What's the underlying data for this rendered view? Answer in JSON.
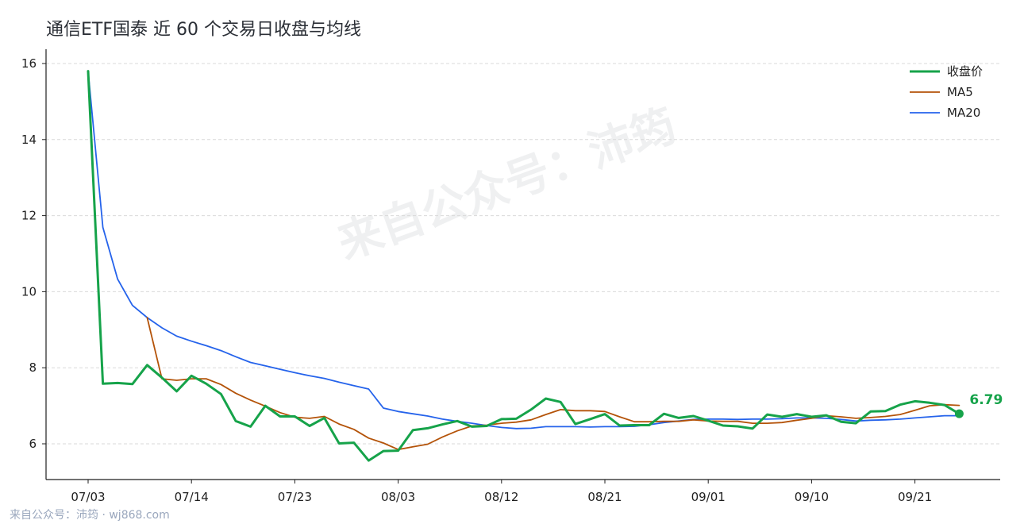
{
  "title": "通信ETF国泰 近 60 个交易日收盘与均线",
  "footer": "来自公众号：沛筠 · wj868.com",
  "watermark": "来自公众号：沛筠",
  "chart_data": {
    "type": "line",
    "title": "通信ETF国泰 近 60 个交易日收盘与均线",
    "xlabel": "",
    "ylabel": "",
    "ylim": [
      5,
      16.6
    ],
    "yticks": [
      6,
      8,
      10,
      12,
      14,
      16
    ],
    "xticks": [
      "07/03",
      "07/14",
      "07/23",
      "08/03",
      "08/12",
      "08/21",
      "09/01",
      "09/10",
      "09/21"
    ],
    "xtick_index": [
      0,
      7,
      14,
      21,
      28,
      35,
      42,
      49,
      56
    ],
    "grid": "horizontal dashed",
    "legend_position": "top-right",
    "last_value_label": "6.79",
    "series": [
      {
        "name": "收盘价",
        "color": "#16a34a",
        "values": [
          15.8,
          7.58,
          7.6,
          7.57,
          8.07,
          7.74,
          7.38,
          7.79,
          7.58,
          7.31,
          6.6,
          6.45,
          7.0,
          6.72,
          6.72,
          6.47,
          6.68,
          6.01,
          6.03,
          5.56,
          5.81,
          5.82,
          6.36,
          6.41,
          6.51,
          6.6,
          6.45,
          6.47,
          6.65,
          6.66,
          6.9,
          7.19,
          7.1,
          6.52,
          6.65,
          6.78,
          6.48,
          6.49,
          6.49,
          6.79,
          6.68,
          6.73,
          6.61,
          6.48,
          6.46,
          6.4,
          6.77,
          6.71,
          6.78,
          6.71,
          6.75,
          6.58,
          6.54,
          6.85,
          6.86,
          7.03,
          7.12,
          7.08,
          7.02,
          6.79
        ]
      },
      {
        "name": "MA5",
        "color": "#b45309",
        "values": [
          null,
          null,
          null,
          null,
          9.32,
          7.71,
          7.67,
          7.71,
          7.71,
          7.56,
          7.33,
          7.15,
          6.99,
          6.82,
          6.7,
          6.67,
          6.72,
          6.52,
          6.38,
          6.15,
          6.02,
          5.85,
          5.92,
          5.99,
          6.18,
          6.34,
          6.47,
          6.49,
          6.54,
          6.57,
          6.63,
          6.77,
          6.9,
          6.87,
          6.87,
          6.85,
          6.71,
          6.58,
          6.58,
          6.59,
          6.59,
          6.63,
          6.6,
          6.59,
          6.59,
          6.54,
          6.54,
          6.56,
          6.62,
          6.67,
          6.74,
          6.71,
          6.67,
          6.69,
          6.72,
          6.77,
          6.88,
          7.0,
          7.03,
          7.01
        ]
      },
      {
        "name": "MA20",
        "color": "#2563eb",
        "values": [
          15.8,
          11.69,
          10.33,
          9.64,
          9.32,
          9.05,
          8.83,
          8.7,
          8.58,
          8.45,
          8.29,
          8.14,
          8.05,
          7.96,
          7.87,
          7.79,
          7.72,
          7.62,
          7.53,
          7.44,
          6.94,
          6.85,
          6.79,
          6.73,
          6.65,
          6.59,
          6.54,
          6.48,
          6.43,
          6.4,
          6.41,
          6.45,
          6.45,
          6.45,
          6.44,
          6.45,
          6.45,
          6.46,
          6.5,
          6.56,
          6.6,
          6.64,
          6.65,
          6.65,
          6.64,
          6.65,
          6.65,
          6.66,
          6.68,
          6.68,
          6.67,
          6.64,
          6.6,
          6.62,
          6.63,
          6.65,
          6.68,
          6.71,
          6.74,
          6.74
        ]
      }
    ]
  }
}
